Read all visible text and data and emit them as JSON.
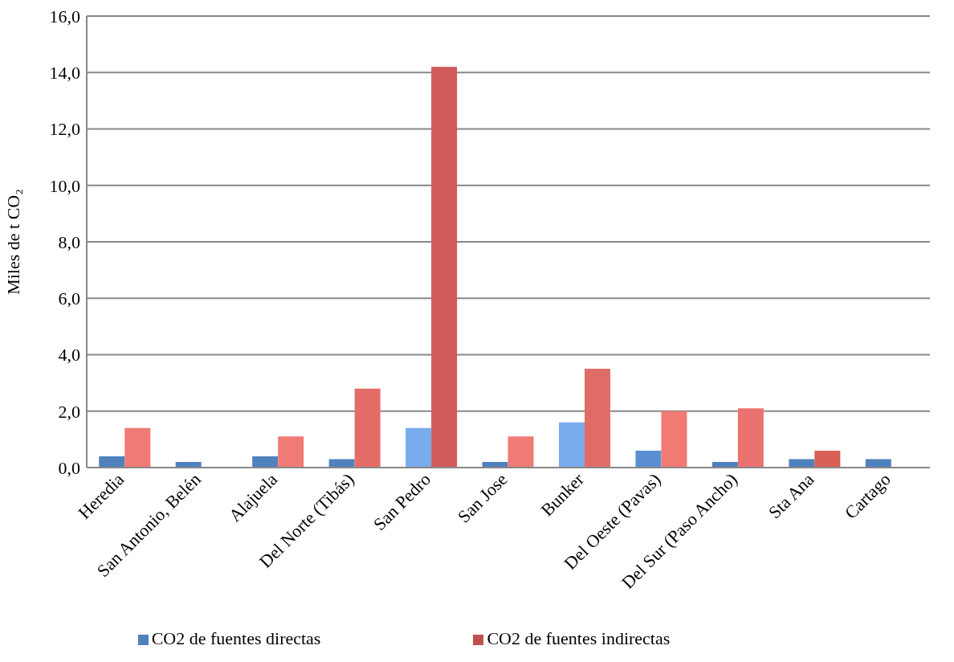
{
  "chart_data": {
    "type": "bar",
    "ylabel": "Miles de t CO₂",
    "categories": [
      "Heredia",
      "San Antonio, Belén",
      "Alajuela",
      "Del Norte (Tibás)",
      "San Pedro",
      "San Jose",
      "Bunker",
      "Del Oeste (Pavas)",
      "Del Sur (Paso Ancho)",
      "Sta Ana",
      "Cartago"
    ],
    "series": [
      {
        "name": "CO2 de fuentes directas",
        "color": "#4f81bd",
        "colors": [
          "#4f81bd",
          "#4f81bd",
          "#4f81bd",
          "#4f81bd",
          "#79acec",
          "#4f81bd",
          "#79acec",
          "#5a8fd4",
          "#4f81bd",
          "#4f81bd",
          "#4f81bd"
        ],
        "values": [
          0.4,
          0.2,
          0.4,
          0.3,
          1.4,
          0.2,
          1.6,
          0.6,
          0.2,
          0.3,
          0.3
        ]
      },
      {
        "name": "CO2 de fuentes indirectas",
        "color": "#c0504d",
        "colors": [
          "#f07a74",
          "#f07a74",
          "#f07a74",
          "#e46c68",
          "#d05a58",
          "#f07a74",
          "#e06c68",
          "#f07a74",
          "#ea7370",
          "#d85e58",
          "#f07a74"
        ],
        "values": [
          1.4,
          0,
          1.1,
          2.8,
          14.2,
          1.1,
          3.5,
          2.0,
          2.1,
          0.6,
          0
        ]
      }
    ],
    "ylim": [
      0,
      16
    ],
    "yticks": [
      {
        "value": 0,
        "label": "0,0"
      },
      {
        "value": 2,
        "label": "2,0"
      },
      {
        "value": 4,
        "label": "4,0"
      },
      {
        "value": 6,
        "label": "6,0"
      },
      {
        "value": 8,
        "label": "8,0"
      },
      {
        "value": 10,
        "label": "10,0"
      },
      {
        "value": 12,
        "label": "12,0"
      },
      {
        "value": 14,
        "label": "14,0"
      },
      {
        "value": 16,
        "label": "16,0"
      }
    ],
    "grid": "y",
    "legend": "bottom"
  }
}
